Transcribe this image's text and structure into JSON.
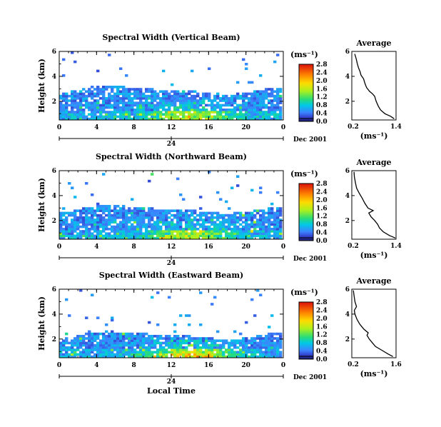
{
  "chart_data": [
    {
      "type": "heatmap",
      "title": "Spectral Width (Vertical Beam)",
      "ylabel": "Height (km)",
      "xlim": [
        0,
        24
      ],
      "ylim": [
        0.5,
        6
      ],
      "xticks": [
        "0",
        "4",
        "8",
        "12",
        "16",
        "20",
        "0"
      ],
      "yticks": [
        "2",
        "4",
        "6"
      ],
      "date_tick_label": "24",
      "date_label": "Dec 2001",
      "colorbar": {
        "unit": "(ms⁻¹)",
        "ticks": [
          "0.0",
          "0.4",
          "0.8",
          "1.2",
          "1.6",
          "2.0",
          "2.4",
          "2.8"
        ],
        "range": [
          0,
          2.8
        ]
      },
      "average": {
        "title": "Average",
        "xlabel": "(ms⁻¹)",
        "xticks": [
          "0.2",
          "1.4"
        ],
        "yticks": [
          "2",
          "4",
          "6"
        ],
        "xlim": [
          0.2,
          1.4
        ],
        "ylim": [
          0.5,
          6
        ],
        "profile": [
          [
            1.35,
            0.6
          ],
          [
            1.25,
            0.8
          ],
          [
            1.1,
            1.0
          ],
          [
            0.98,
            1.3
          ],
          [
            0.92,
            1.6
          ],
          [
            0.86,
            2.0
          ],
          [
            0.82,
            2.4
          ],
          [
            0.76,
            2.6
          ],
          [
            0.68,
            2.8
          ],
          [
            0.6,
            3.1
          ],
          [
            0.56,
            3.4
          ],
          [
            0.52,
            3.8
          ],
          [
            0.45,
            4.1
          ],
          [
            0.42,
            4.4
          ],
          [
            0.38,
            4.7
          ],
          [
            0.35,
            5.0
          ],
          [
            0.32,
            5.4
          ],
          [
            0.28,
            5.8
          ]
        ]
      }
    },
    {
      "type": "heatmap",
      "title": "Spectral Width (Northward Beam)",
      "ylabel": "Height (km)",
      "xlim": [
        0,
        24
      ],
      "ylim": [
        0.5,
        6
      ],
      "xticks": [
        "0",
        "4",
        "8",
        "12",
        "16",
        "20",
        "0"
      ],
      "yticks": [
        "2",
        "4",
        "6"
      ],
      "date_tick_label": "24",
      "date_label": "Dec 2001",
      "colorbar": {
        "unit": "(ms⁻¹)",
        "ticks": [
          "0.0",
          "0.4",
          "0.8",
          "1.2",
          "1.6",
          "2.0",
          "2.4",
          "2.8"
        ],
        "range": [
          0,
          2.8
        ]
      },
      "average": {
        "title": "Average",
        "xlabel": "(ms⁻¹)",
        "xticks": [
          "0.2",
          "1.4"
        ],
        "yticks": [
          "2",
          "4",
          "6"
        ],
        "xlim": [
          0.2,
          1.4
        ],
        "ylim": [
          0.5,
          6
        ],
        "profile": [
          [
            1.38,
            0.6
          ],
          [
            1.22,
            0.8
          ],
          [
            1.05,
            1.1
          ],
          [
            0.95,
            1.4
          ],
          [
            0.9,
            1.7
          ],
          [
            0.82,
            2.0
          ],
          [
            0.72,
            2.3
          ],
          [
            0.66,
            2.6
          ],
          [
            0.78,
            2.8
          ],
          [
            0.64,
            3.0
          ],
          [
            0.55,
            3.4
          ],
          [
            0.48,
            3.8
          ],
          [
            0.4,
            4.2
          ],
          [
            0.33,
            4.6
          ],
          [
            0.3,
            5.0
          ],
          [
            0.27,
            5.5
          ],
          [
            0.26,
            5.9
          ]
        ]
      }
    },
    {
      "type": "heatmap",
      "title": "Spectral Width (Eastward Beam)",
      "ylabel": "Height (km)",
      "xlim": [
        0,
        24
      ],
      "ylim": [
        0.5,
        6
      ],
      "xticks": [
        "0",
        "4",
        "8",
        "12",
        "16",
        "20",
        "0"
      ],
      "yticks": [
        "2",
        "4",
        "6"
      ],
      "date_tick_label": "24",
      "date_label": "Dec 2001",
      "xlabel": "Local Time",
      "colorbar": {
        "unit": "(ms⁻¹)",
        "ticks": [
          "0.0",
          "0.4",
          "0.8",
          "1.2",
          "1.6",
          "2.0",
          "2.4",
          "2.8"
        ],
        "range": [
          0,
          2.8
        ]
      },
      "average": {
        "title": "Average",
        "xlabel": "(ms⁻¹)",
        "xticks": [
          "0.2",
          "1.6"
        ],
        "yticks": [
          "2",
          "4",
          "6"
        ],
        "xlim": [
          0.2,
          1.6
        ],
        "ylim": [
          0.5,
          6
        ],
        "profile": [
          [
            1.5,
            0.6
          ],
          [
            1.35,
            0.8
          ],
          [
            1.15,
            1.1
          ],
          [
            0.95,
            1.4
          ],
          [
            0.85,
            1.7
          ],
          [
            0.75,
            2.0
          ],
          [
            0.68,
            2.3
          ],
          [
            0.72,
            2.5
          ],
          [
            0.58,
            2.8
          ],
          [
            0.45,
            3.2
          ],
          [
            0.36,
            3.6
          ],
          [
            0.3,
            4.0
          ],
          [
            0.28,
            4.3
          ],
          [
            0.35,
            4.6
          ],
          [
            0.3,
            5.0
          ],
          [
            0.27,
            5.5
          ],
          [
            0.25,
            5.9
          ]
        ]
      }
    }
  ]
}
